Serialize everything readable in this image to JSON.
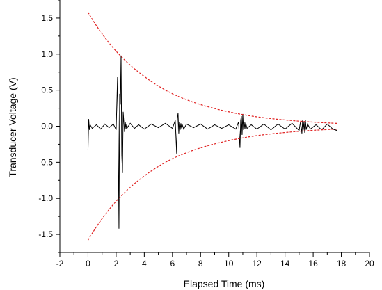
{
  "chart_data": {
    "type": "line",
    "xlabel": "Elapsed Time (ms)",
    "ylabel": "Transducer Voltage (V)",
    "xlim": [
      -2,
      20
    ],
    "ylim": [
      -1.75,
      1.75
    ],
    "x_ticks": [
      -2,
      0,
      2,
      4,
      6,
      8,
      10,
      12,
      14,
      16,
      18,
      20
    ],
    "x_tick_labels": [
      "-2",
      "0",
      "2",
      "4",
      "6",
      "8",
      "10",
      "12",
      "14",
      "16",
      "18",
      "20"
    ],
    "y_ticks": [
      -1.5,
      -1.0,
      -0.5,
      0.0,
      0.5,
      1.0,
      1.5
    ],
    "y_tick_labels": [
      "-1.5",
      "-1.0",
      "-0.5",
      "0.0",
      "0.5",
      "1.0",
      "1.5"
    ],
    "grid": false,
    "series": [
      {
        "style": "solid",
        "color": "#000000",
        "x": [
          0.0,
          0.05,
          0.1,
          0.15,
          0.3,
          0.6,
          0.9,
          1.2,
          1.5,
          1.8,
          2.0,
          2.1,
          2.15,
          2.2,
          2.25,
          2.3,
          2.35,
          2.4,
          2.45,
          2.5,
          2.55,
          2.6,
          2.65,
          2.7,
          2.75,
          2.8,
          3.0,
          3.3,
          3.6,
          4.0,
          4.5,
          5.0,
          5.5,
          6.0,
          6.2,
          6.3,
          6.35,
          6.4,
          6.45,
          6.5,
          6.55,
          6.6,
          6.65,
          6.7,
          6.8,
          7.0,
          7.5,
          8.0,
          8.5,
          9.0,
          9.5,
          10.0,
          10.5,
          10.7,
          10.8,
          10.85,
          10.9,
          10.95,
          11.0,
          11.05,
          11.1,
          11.15,
          11.2,
          11.3,
          11.6,
          12.0,
          12.5,
          13.0,
          13.5,
          14.0,
          14.5,
          15.0,
          15.1,
          15.2,
          15.25,
          15.3,
          15.35,
          15.4,
          15.45,
          15.5,
          15.6,
          15.8,
          16.2,
          16.6,
          17.0,
          17.4,
          17.7
        ],
        "values": [
          -0.33,
          0.1,
          -0.05,
          0.02,
          -0.03,
          0.02,
          -0.04,
          0.03,
          -0.02,
          0.03,
          -0.05,
          0.68,
          -0.2,
          -1.42,
          0.45,
          0.3,
          0.98,
          -0.4,
          -0.65,
          0.2,
          0.05,
          -0.08,
          0.06,
          -0.04,
          0.03,
          -0.02,
          0.04,
          -0.03,
          0.02,
          -0.04,
          0.03,
          -0.02,
          0.04,
          -0.03,
          0.08,
          -0.38,
          0.12,
          0.18,
          -0.1,
          0.06,
          -0.05,
          0.04,
          -0.03,
          0.02,
          -0.04,
          0.03,
          -0.02,
          0.03,
          -0.04,
          0.02,
          -0.03,
          0.02,
          -0.04,
          0.06,
          -0.3,
          0.08,
          0.14,
          -0.12,
          0.17,
          -0.05,
          0.06,
          -0.04,
          0.05,
          -0.03,
          0.02,
          -0.04,
          0.03,
          -0.05,
          0.03,
          -0.04,
          0.04,
          -0.06,
          0.06,
          -0.1,
          0.08,
          -0.05,
          0.07,
          -0.09,
          0.09,
          -0.05,
          0.03,
          -0.04,
          0.02,
          -0.05,
          0.03,
          -0.04,
          -0.06
        ]
      },
      {
        "style": "dashed",
        "color": "#e02020",
        "x": [
          0,
          2,
          4,
          6,
          8,
          10,
          12,
          14,
          16,
          17.7
        ],
        "values": [
          1.58,
          1.04,
          0.69,
          0.45,
          0.3,
          0.2,
          0.13,
          0.087,
          0.057,
          0.04
        ]
      },
      {
        "style": "dashed",
        "color": "#e02020",
        "x": [
          0,
          2,
          4,
          6,
          8,
          10,
          12,
          14,
          16,
          17.7
        ],
        "values": [
          -1.58,
          -1.04,
          -0.69,
          -0.45,
          -0.3,
          -0.2,
          -0.13,
          -0.087,
          -0.057,
          -0.04
        ]
      }
    ]
  }
}
